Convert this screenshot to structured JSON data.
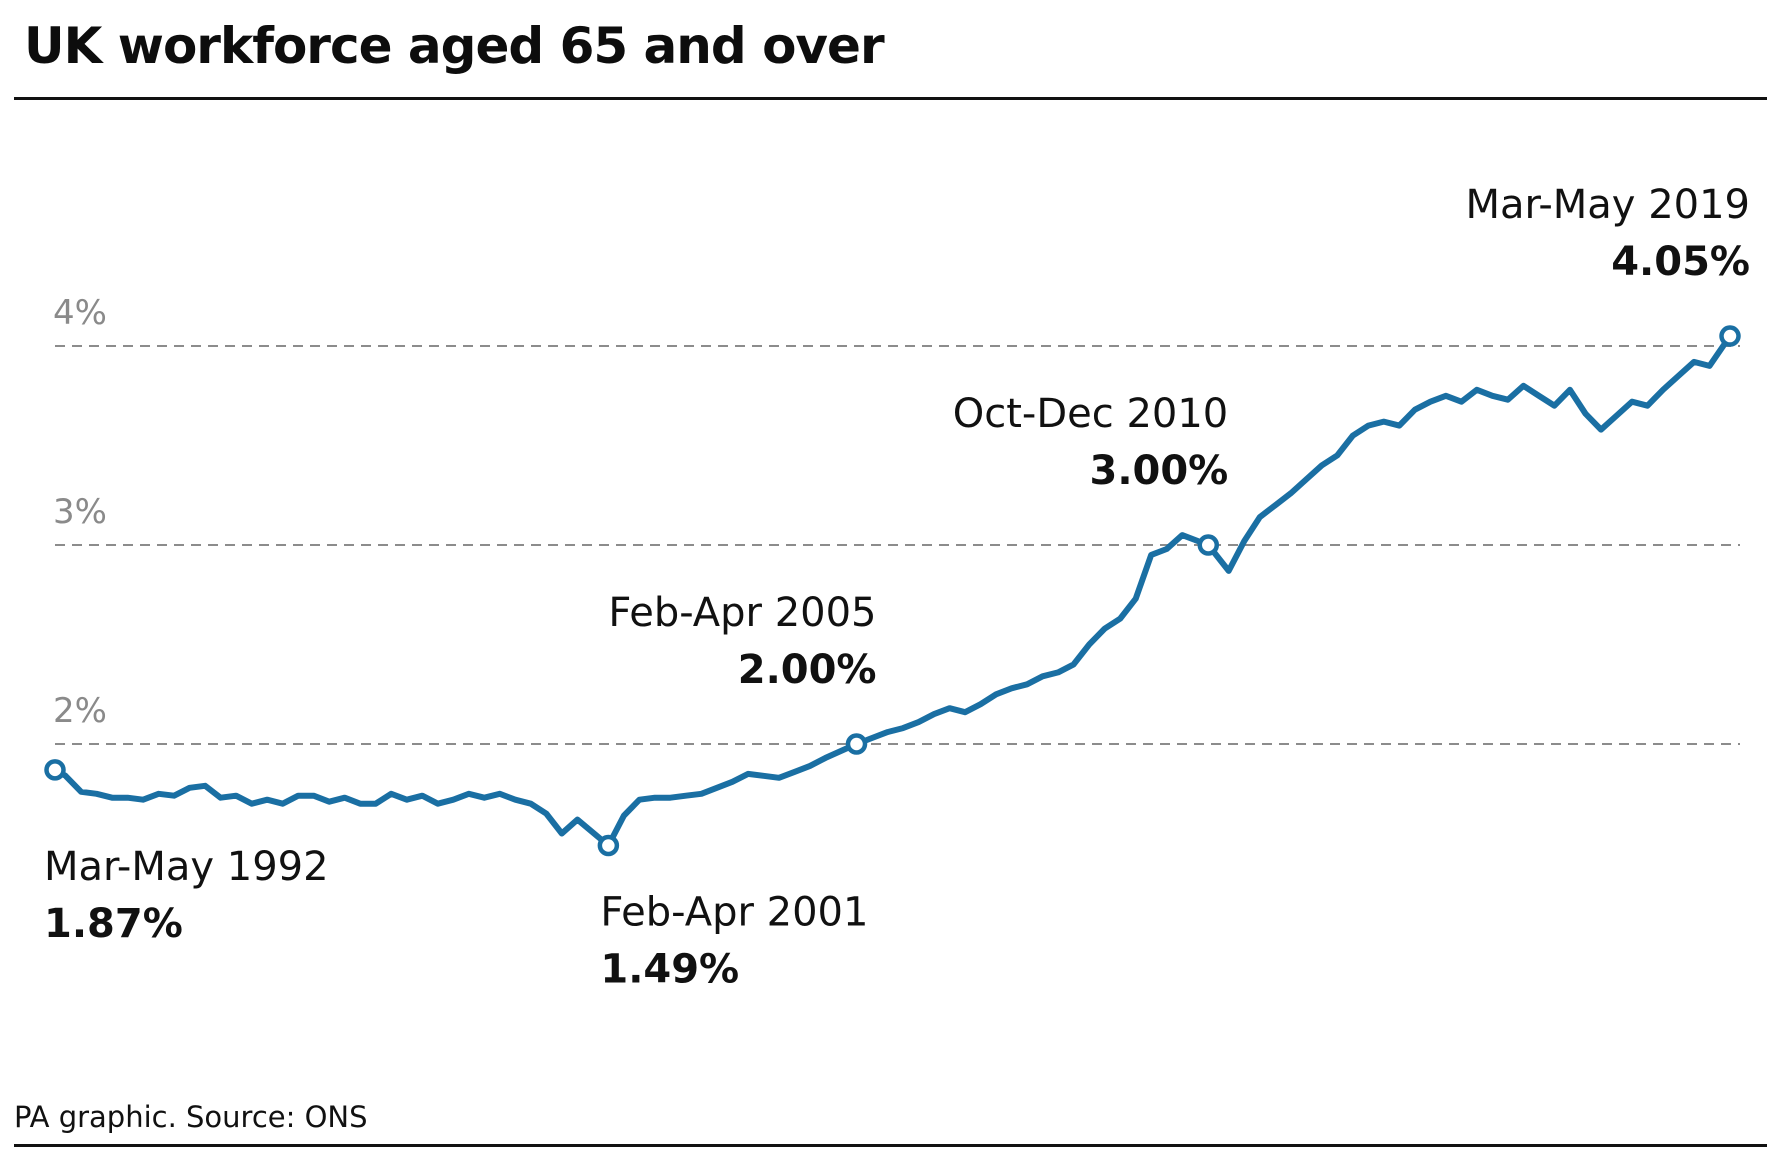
{
  "header": {
    "title": "UK workforce aged 65 and over"
  },
  "footer": {
    "source": "PA graphic. Source: ONS"
  },
  "colors": {
    "line": "#1a6fa3",
    "grid": "#8c8c8c",
    "text": "#111111"
  },
  "chart_data": {
    "type": "line",
    "title": "UK workforce aged 65 and over",
    "xlabel": "",
    "ylabel": "",
    "ylim": [
      1.3,
      4.0
    ],
    "grid": "horizontal dashed",
    "y_ticks": [
      {
        "value": 2,
        "label": "2%"
      },
      {
        "value": 3,
        "label": "3%"
      },
      {
        "value": 4,
        "label": "4%"
      }
    ],
    "series": [
      {
        "x": [
          1992.33,
          1992.5,
          1992.75,
          1993,
          1993.25,
          1993.5,
          1993.75,
          1994,
          1994.25,
          1994.5,
          1994.75,
          1995,
          1995.25,
          1995.5,
          1995.75,
          1996,
          1996.25,
          1996.5,
          1996.75,
          1997,
          1997.25,
          1997.5,
          1997.75,
          1998,
          1998.25,
          1998.5,
          1998.75,
          1999,
          1999.25,
          1999.5,
          1999.75,
          2000,
          2000.25,
          2000.5,
          2000.75,
          2001.25,
          2001.5,
          2001.75,
          2002,
          2002.25,
          2002.5,
          2002.75,
          2003,
          2003.25,
          2003.5,
          2003.75,
          2004,
          2004.25,
          2004.5,
          2004.75,
          2005.25,
          2005.5,
          2005.75,
          2006,
          2006.25,
          2006.5,
          2006.75,
          2007,
          2007.25,
          2007.5,
          2007.75,
          2008,
          2008.25,
          2008.5,
          2008.75,
          2009,
          2009.25,
          2009.5,
          2009.75,
          2010,
          2010.25,
          2010.5,
          2010.92,
          2011.25,
          2011.5,
          2011.75,
          2012,
          2012.25,
          2012.5,
          2012.75,
          2013,
          2013.25,
          2013.5,
          2013.75,
          2014,
          2014.25,
          2014.5,
          2014.75,
          2015,
          2015.25,
          2015.5,
          2015.75,
          2016,
          2016.25,
          2016.5,
          2016.75,
          2017,
          2017.25,
          2017.5,
          2017.75,
          2018,
          2018.25,
          2018.5,
          2018.75,
          2019,
          2019.33
        ],
        "values": [
          1.87,
          1.84,
          1.76,
          1.75,
          1.73,
          1.73,
          1.72,
          1.75,
          1.74,
          1.78,
          1.79,
          1.73,
          1.74,
          1.7,
          1.72,
          1.7,
          1.74,
          1.74,
          1.71,
          1.73,
          1.7,
          1.7,
          1.75,
          1.72,
          1.74,
          1.7,
          1.72,
          1.75,
          1.73,
          1.75,
          1.72,
          1.7,
          1.65,
          1.55,
          1.62,
          1.49,
          1.64,
          1.72,
          1.73,
          1.73,
          1.74,
          1.75,
          1.78,
          1.81,
          1.85,
          1.84,
          1.83,
          1.86,
          1.89,
          1.93,
          2.0,
          2.03,
          2.06,
          2.08,
          2.11,
          2.15,
          2.18,
          2.16,
          2.2,
          2.25,
          2.28,
          2.3,
          2.34,
          2.36,
          2.4,
          2.5,
          2.58,
          2.63,
          2.73,
          2.95,
          2.98,
          3.05,
          3.0,
          2.87,
          3.02,
          3.14,
          3.2,
          3.26,
          3.33,
          3.4,
          3.45,
          3.55,
          3.6,
          3.62,
          3.6,
          3.68,
          3.72,
          3.75,
          3.72,
          3.78,
          3.75,
          3.73,
          3.8,
          3.75,
          3.7,
          3.78,
          3.66,
          3.58,
          3.65,
          3.72,
          3.7,
          3.78,
          3.85,
          3.92,
          3.9,
          4.05
        ]
      }
    ],
    "annotations": [
      {
        "x": 1992.33,
        "y": 1.87,
        "label": "Mar-May 1992",
        "value": "1.87%",
        "anchor": "start",
        "place": "below"
      },
      {
        "x": 2001.25,
        "y": 1.49,
        "label": "Feb-Apr 2001",
        "value": "1.49%",
        "anchor": "start",
        "place": "below"
      },
      {
        "x": 2005.25,
        "y": 2.0,
        "label": "Feb-Apr 2005",
        "value": "2.00%",
        "anchor": "end",
        "place": "above"
      },
      {
        "x": 2010.92,
        "y": 3.0,
        "label": "Oct-Dec 2010",
        "value": "3.00%",
        "anchor": "end",
        "place": "above"
      },
      {
        "x": 2019.33,
        "y": 4.05,
        "label": "Mar-May 2019",
        "value": "4.05%",
        "anchor": "end",
        "place": "above"
      }
    ]
  }
}
